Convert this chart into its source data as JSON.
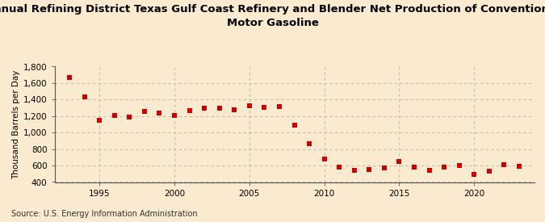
{
  "title": "Annual Refining District Texas Gulf Coast Refinery and Blender Net Production of Conventional\nMotor Gasoline",
  "ylabel": "Thousand Barrels per Day",
  "source": "Source: U.S. Energy Information Administration",
  "background_color": "#faebd0",
  "plot_bg_color": "#faebd0",
  "marker_color": "#cc0000",
  "years": [
    1993,
    1994,
    1995,
    1996,
    1997,
    1998,
    1999,
    2000,
    2001,
    2002,
    2003,
    2004,
    2005,
    2006,
    2007,
    2008,
    2009,
    2010,
    2011,
    2012,
    2013,
    2014,
    2015,
    2016,
    2017,
    2018,
    2019,
    2020,
    2021,
    2022,
    2023
  ],
  "values": [
    1670,
    1435,
    1145,
    1210,
    1185,
    1255,
    1235,
    1210,
    1270,
    1295,
    1300,
    1280,
    1330,
    1305,
    1315,
    1095,
    865,
    680,
    580,
    545,
    555,
    570,
    645,
    580,
    545,
    585,
    600,
    490,
    530,
    610,
    590
  ],
  "ylim": [
    400,
    1800
  ],
  "yticks": [
    400,
    600,
    800,
    1000,
    1200,
    1400,
    1600,
    1800
  ],
  "xlim": [
    1992,
    2024
  ],
  "xticks": [
    1995,
    2000,
    2005,
    2010,
    2015,
    2020
  ],
  "title_fontsize": 9.5,
  "ylabel_fontsize": 7.5,
  "tick_fontsize": 7.5,
  "source_fontsize": 7.0
}
